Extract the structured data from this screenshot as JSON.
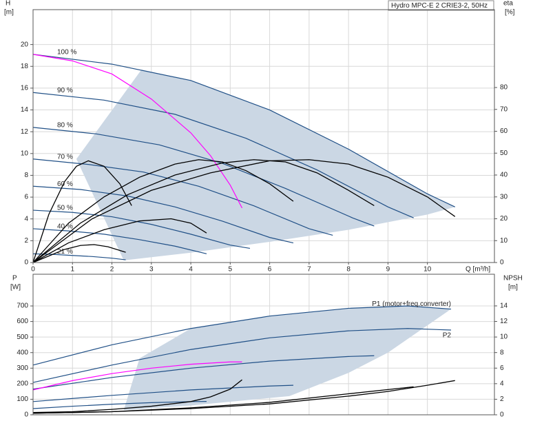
{
  "chart_data": [
    {
      "type": "line",
      "title": "Hydro MPC-E 2 CRIE3-2, 50Hz",
      "xlabel": "Q [m³/h]",
      "ylabel": "H",
      "yunit": "[m]",
      "y2label": "eta",
      "y2unit": "[%]",
      "xlim": [
        0,
        11.7
      ],
      "xticks": [
        0,
        1,
        2,
        3,
        4,
        5,
        6,
        7,
        8,
        9,
        10
      ],
      "ylim": [
        0,
        23.2
      ],
      "yticks": [
        0,
        2,
        4,
        6,
        8,
        10,
        12,
        14,
        16,
        18,
        20
      ],
      "y2lim": [
        0,
        115.6
      ],
      "y2ticks": [
        0,
        10,
        20,
        30,
        40,
        50,
        60,
        70,
        80
      ],
      "grid": true,
      "series_labels": "start",
      "area": {
        "color": "#cbd7e4",
        "x": [
          2.75,
          4,
          6,
          8,
          10,
          10.7,
          10,
          8,
          6,
          4,
          2.3,
          1.1
        ],
        "values": [
          17.7,
          16.7,
          14.0,
          10.4,
          6.3,
          5.1,
          4.4,
          3.0,
          1.9,
          0.9,
          0.2,
          9.5
        ]
      },
      "series": [
        {
          "name": "100 %",
          "color": "#1f4f86",
          "x": [
            0,
            2,
            4,
            6,
            8,
            10,
            10.7
          ],
          "values": [
            19.1,
            18.2,
            16.7,
            14.0,
            10.4,
            6.3,
            5.1
          ]
        },
        {
          "name": "90 %",
          "color": "#1f4f86",
          "x": [
            0,
            1.8,
            3.6,
            5.4,
            7.2,
            9.0,
            9.65
          ],
          "values": [
            15.6,
            14.9,
            13.6,
            11.4,
            8.5,
            5.1,
            4.1
          ]
        },
        {
          "name": "80 %",
          "color": "#1f4f86",
          "x": [
            0,
            1.6,
            3.2,
            4.8,
            6.4,
            8.1,
            8.65
          ],
          "values": [
            12.4,
            11.8,
            10.8,
            9.1,
            6.8,
            4.1,
            3.35
          ]
        },
        {
          "name": "70 %",
          "color": "#1f4f86",
          "x": [
            0,
            1.4,
            2.8,
            4.2,
            5.6,
            7.0,
            7.6
          ],
          "values": [
            9.5,
            9.0,
            8.3,
            7.0,
            5.2,
            3.1,
            2.5
          ]
        },
        {
          "name": "60 %",
          "color": "#1f4f86",
          "x": [
            0,
            1.2,
            2.4,
            3.6,
            4.8,
            6.0,
            6.6
          ],
          "values": [
            7.0,
            6.7,
            6.1,
            5.1,
            3.8,
            2.3,
            1.8
          ]
        },
        {
          "name": "50 %",
          "color": "#1f4f86",
          "x": [
            0,
            1,
            2,
            3,
            4,
            5,
            5.5
          ],
          "values": [
            4.8,
            4.6,
            4.2,
            3.5,
            2.6,
            1.6,
            1.3
          ]
        },
        {
          "name": "40 %",
          "color": "#1f4f86",
          "x": [
            0,
            0.9,
            1.8,
            2.7,
            3.6,
            4.4
          ],
          "values": [
            3.1,
            2.9,
            2.6,
            2.1,
            1.5,
            0.8
          ]
        },
        {
          "name": "21 %",
          "color": "#1f4f86",
          "x": [
            0,
            0.5,
            1,
            1.5,
            2,
            2.35
          ],
          "values": [
            0.8,
            0.75,
            0.65,
            0.55,
            0.4,
            0.25
          ]
        },
        {
          "color": "#ff00ff",
          "x": [
            0,
            1,
            2,
            3,
            4,
            4.5,
            5,
            5.3
          ],
          "values": [
            19.1,
            18.5,
            17.3,
            15.0,
            11.9,
            9.8,
            7.1,
            5.0
          ]
        },
        {
          "color": "#000000",
          "axis": "y2",
          "x": [
            0,
            1.5,
            3,
            4.5,
            6,
            7,
            8,
            9,
            10,
            10.7
          ],
          "values": [
            0,
            20,
            33,
            41,
            46.5,
            47,
            45,
            39,
            30,
            21
          ]
        },
        {
          "color": "#000000",
          "axis": "y2",
          "x": [
            0,
            1.2,
            2.4,
            3.6,
            4.8,
            5.6,
            6.4,
            7.2,
            8,
            8.65
          ],
          "values": [
            0,
            18,
            31,
            40,
            45.5,
            47,
            46,
            41,
            33,
            26
          ]
        },
        {
          "color": "#000000",
          "axis": "y2",
          "x": [
            0,
            0.9,
            1.8,
            2.7,
            3.6,
            4.2,
            4.8,
            5.4,
            6,
            6.6
          ],
          "values": [
            0,
            18,
            30,
            39,
            45,
            47,
            46,
            42,
            36,
            28
          ]
        },
        {
          "color": "#000000",
          "axis": "y2",
          "x": [
            0,
            0.4,
            0.8,
            1.1,
            1.4,
            1.8,
            2.2,
            2.5
          ],
          "values": [
            0,
            22,
            37,
            44,
            46.5,
            44,
            36,
            26
          ]
        },
        {
          "color": "#000000",
          "axis": "y2",
          "x": [
            0,
            0.9,
            1.8,
            2.7,
            3.5,
            4,
            4.4
          ],
          "values": [
            0,
            9,
            15,
            19,
            20,
            18,
            13.5
          ]
        },
        {
          "color": "#000000",
          "axis": "y2",
          "x": [
            0,
            0.4,
            0.8,
            1.2,
            1.55,
            1.9,
            2.35
          ],
          "values": [
            0,
            3,
            6,
            7.8,
            8.2,
            7.2,
            4.7
          ]
        }
      ]
    },
    {
      "type": "line",
      "ylabel": "P",
      "yunit": "[W]",
      "y2label": "NPSH",
      "y2unit": "[m]",
      "xlim": [
        0,
        11.7
      ],
      "ylim": [
        0,
        904
      ],
      "yticks": [
        0,
        100,
        200,
        300,
        400,
        500,
        600,
        700
      ],
      "y2lim": [
        0,
        18.07
      ],
      "y2ticks": [
        0,
        2,
        4,
        6,
        8,
        10,
        12,
        14
      ],
      "grid": true,
      "series_labels": "end",
      "area": {
        "color": "#cbd7e4",
        "x": [
          2.7,
          4,
          6,
          8,
          9.5,
          10.6,
          9,
          8,
          6.5,
          4,
          2.3
        ],
        "values": [
          363,
          555,
          635,
          685,
          700,
          680,
          400,
          270,
          120,
          60,
          30
        ]
      },
      "series": [
        {
          "name": "P1 (motor+freq.converter)",
          "color": "#1f4f86",
          "x": [
            0,
            2,
            4,
            6,
            8,
            9.5,
            10.6
          ],
          "values": [
            320,
            450,
            555,
            635,
            685,
            700,
            680
          ]
        },
        {
          "name": "P2",
          "color": "#1f4f86",
          "x": [
            0,
            2,
            4,
            6,
            8,
            9.5,
            10.6
          ],
          "values": [
            208,
            320,
            420,
            495,
            540,
            555,
            545
          ]
        },
        {
          "color": "#1f4f86",
          "x": [
            0,
            2,
            4,
            6,
            8,
            8.65
          ],
          "values": [
            165,
            240,
            300,
            345,
            375,
            380
          ]
        },
        {
          "color": "#1f4f86",
          "x": [
            0,
            2,
            4,
            6,
            6.6
          ],
          "values": [
            85,
            125,
            160,
            185,
            190
          ]
        },
        {
          "color": "#1f4f86",
          "x": [
            0,
            1,
            2,
            3,
            4,
            4.4
          ],
          "values": [
            40,
            55,
            68,
            78,
            85,
            86
          ]
        },
        {
          "color": "#ff00ff",
          "x": [
            0,
            1,
            2,
            3,
            4,
            5,
            5.3
          ],
          "values": [
            160,
            220,
            265,
            300,
            325,
            340,
            340
          ]
        },
        {
          "color": "#000000",
          "axis": "y2",
          "x": [
            0,
            2,
            4,
            6,
            8,
            9,
            10,
            10.7
          ],
          "values": [
            0.2,
            0.4,
            0.8,
            1.4,
            2.4,
            3.0,
            3.8,
            4.4
          ]
        },
        {
          "color": "#000000",
          "axis": "y2",
          "x": [
            0,
            2,
            4,
            6,
            8,
            9.65
          ],
          "values": [
            0.2,
            0.4,
            0.9,
            1.6,
            2.7,
            3.6
          ]
        },
        {
          "color": "#000000",
          "axis": "y2",
          "x": [
            0,
            1,
            2,
            3,
            4,
            4.5,
            5,
            5.3
          ],
          "values": [
            0.3,
            0.4,
            0.7,
            1.1,
            1.7,
            2.3,
            3.3,
            4.5
          ]
        }
      ]
    }
  ]
}
